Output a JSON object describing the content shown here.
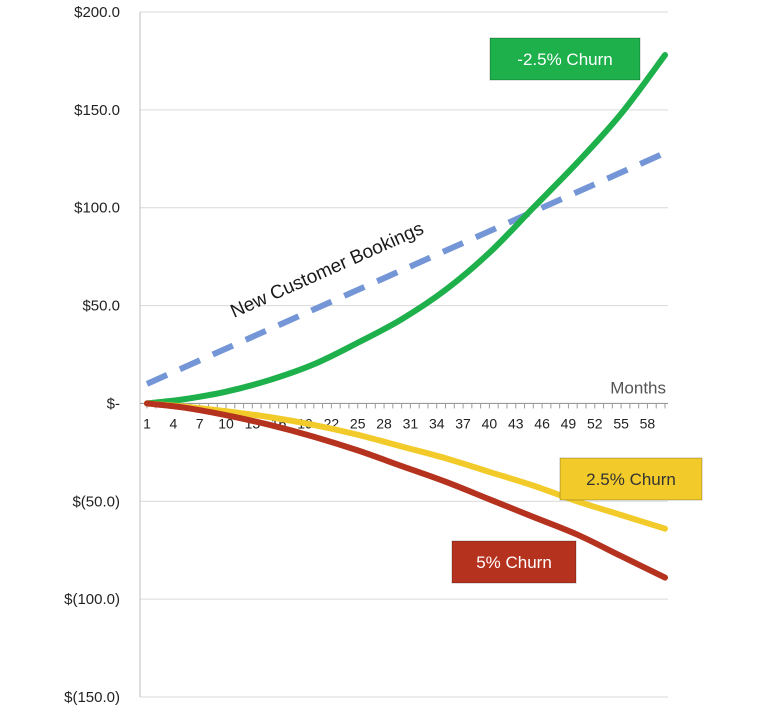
{
  "chart_data": {
    "type": "line",
    "title": "",
    "xlabel": "Months",
    "ylabel": "",
    "x_ticks": [
      "1",
      "4",
      "7",
      "10",
      "13",
      "16",
      "19",
      "22",
      "25",
      "28",
      "31",
      "34",
      "37",
      "40",
      "43",
      "46",
      "49",
      "52",
      "55",
      "58"
    ],
    "xlim": [
      1,
      60
    ],
    "ylim": [
      -150,
      200
    ],
    "y_ticks": [
      {
        "value": 200,
        "label": "$200.0"
      },
      {
        "value": 150,
        "label": "$150.0"
      },
      {
        "value": 100,
        "label": "$100.0"
      },
      {
        "value": 50,
        "label": "$50.0"
      },
      {
        "value": 0,
        "label": "$-"
      },
      {
        "value": -50,
        "label": "$(50.0)"
      },
      {
        "value": -100,
        "label": "$(100.0)"
      },
      {
        "value": -150,
        "label": "$(150.0)"
      }
    ],
    "grid": true,
    "annotation": "New Customer Bookings",
    "series": [
      {
        "name": "New Customer Bookings",
        "color": "#7596d6",
        "style": "dashed",
        "x": [
          1,
          60
        ],
        "y": [
          10,
          128
        ]
      },
      {
        "name": "-2.5% Churn",
        "color": "#1db04b",
        "style": "solid",
        "x": [
          1,
          5,
          10,
          15,
          20,
          25,
          30,
          35,
          40,
          45,
          50,
          55,
          60
        ],
        "y": [
          0,
          2,
          6,
          12,
          20,
          31,
          43,
          58,
          77,
          100,
          123,
          148,
          178
        ]
      },
      {
        "name": "2.5% Churn",
        "color": "#f2cb2a",
        "style": "solid",
        "x": [
          1,
          5,
          10,
          15,
          20,
          25,
          30,
          35,
          40,
          45,
          50,
          55,
          60
        ],
        "y": [
          0,
          -1.5,
          -4,
          -7,
          -11,
          -16,
          -22,
          -28,
          -35,
          -42,
          -50,
          -57,
          -64
        ]
      },
      {
        "name": "5% Churn",
        "color": "#b5321f",
        "style": "solid",
        "x": [
          1,
          5,
          10,
          15,
          20,
          25,
          30,
          35,
          40,
          45,
          50,
          55,
          60
        ],
        "y": [
          0,
          -2,
          -6,
          -11,
          -17,
          -24,
          -32,
          -40,
          -49,
          -58,
          -67,
          -78,
          -89
        ]
      }
    ],
    "legend_labels": [
      {
        "text": "-2.5% Churn",
        "bg": "#1db04b",
        "fg": "#ffffff",
        "placement": "top-right"
      },
      {
        "text": "2.5% Churn",
        "bg": "#f2cb2a",
        "fg": "#333333",
        "placement": "right"
      },
      {
        "text": "5% Churn",
        "bg": "#b5321f",
        "fg": "#ffffff",
        "placement": "bottom-right"
      }
    ]
  }
}
